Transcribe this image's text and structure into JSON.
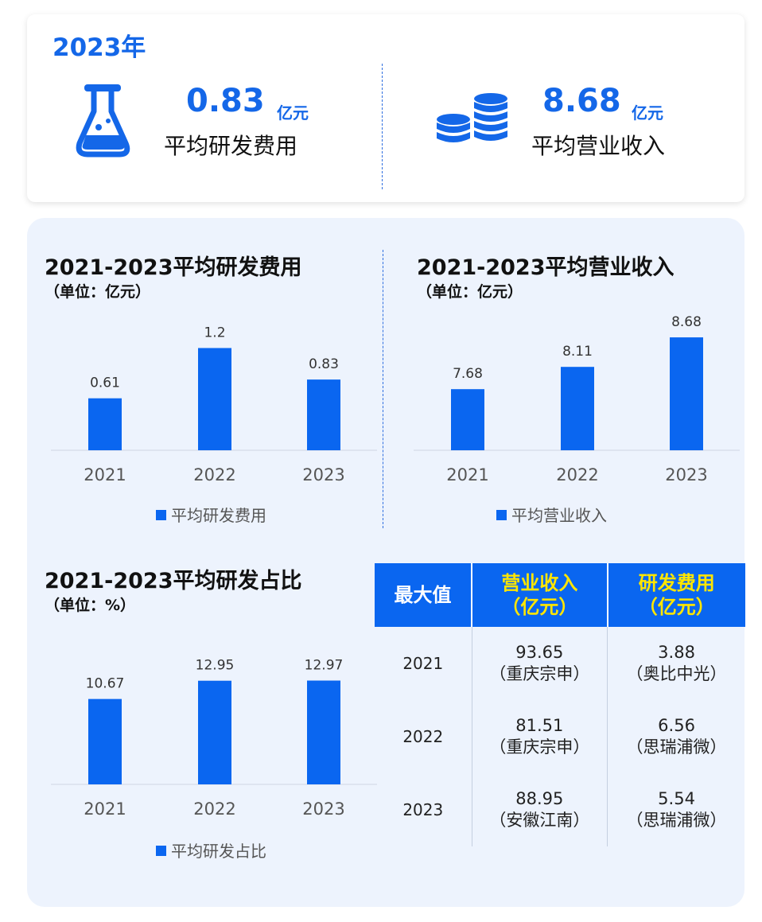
{
  "summary": {
    "year_title": "2023年",
    "rd": {
      "value": "0.83",
      "unit": "亿元",
      "label": "平均研发费用",
      "icon": "flask-icon"
    },
    "revenue": {
      "value": "8.68",
      "unit": "亿元",
      "label": "平均营业收入",
      "icon": "coins-icon"
    }
  },
  "colors": {
    "accent": "#1467e8",
    "bar": "#0a66f0",
    "panel_bg": "#edf3fd",
    "table_header_highlight": "#ffe600"
  },
  "chart_data": [
    {
      "type": "bar",
      "title": "2021-2023平均研发费用",
      "unit": "（单位：亿元）",
      "categories": [
        "2021",
        "2022",
        "2023"
      ],
      "series": [
        {
          "name": "平均研发费用",
          "values": [
            0.61,
            1.2,
            0.83
          ],
          "labels": [
            "0.61",
            "1.2",
            "0.83"
          ]
        }
      ],
      "ylim": [
        0,
        1.55
      ],
      "grid": false,
      "legend": "bottom"
    },
    {
      "type": "bar",
      "title": "2021-2023平均营业收入",
      "unit": "（单位：亿元）",
      "categories": [
        "2021",
        "2022",
        "2023"
      ],
      "series": [
        {
          "name": "平均营业收入",
          "values": [
            7.68,
            8.11,
            8.68
          ],
          "labels": [
            "7.68",
            "8.11",
            "8.68"
          ]
        }
      ],
      "ylim": [
        6.5,
        9.05
      ],
      "grid": false,
      "legend": "bottom"
    },
    {
      "type": "bar",
      "title": "2021-2023平均研发占比",
      "unit": "（单位：%）",
      "categories": [
        "2021",
        "2022",
        "2023"
      ],
      "series": [
        {
          "name": "平均研发占比",
          "values": [
            10.67,
            12.95,
            12.97
          ],
          "labels": [
            "10.67",
            "12.95",
            "12.97"
          ]
        }
      ],
      "ylim": [
        0,
        16.5
      ],
      "grid": false,
      "legend": "bottom"
    },
    {
      "type": "table",
      "headers": [
        "最大值",
        "营业收入\n（亿元）",
        "研发费用\n（亿元）"
      ],
      "rows": [
        {
          "year": "2021",
          "revenue_value": "93.65",
          "revenue_company": "（重庆宗申）",
          "rd_value": "3.88",
          "rd_company": "（奥比中光）"
        },
        {
          "year": "2022",
          "revenue_value": "81.51",
          "revenue_company": "（重庆宗申）",
          "rd_value": "6.56",
          "rd_company": "（思瑞浦微）"
        },
        {
          "year": "2023",
          "revenue_value": "88.95",
          "revenue_company": "（安徽江南）",
          "rd_value": "5.54",
          "rd_company": "（思瑞浦微）"
        }
      ]
    }
  ]
}
